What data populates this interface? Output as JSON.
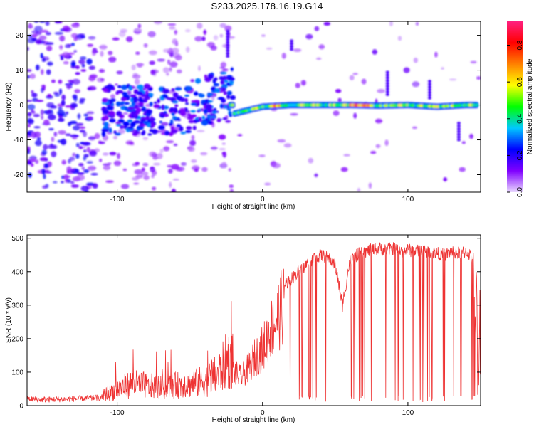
{
  "title": "S233.2025.178.16.19.G14",
  "chart_data": [
    {
      "type": "heatmap",
      "xlabel": "Height of straight line (km)",
      "ylabel": "Frequency (Hz)",
      "xlim": [
        -162,
        150
      ],
      "ylim": [
        -25,
        24
      ],
      "xticks": [
        -100,
        0,
        100
      ],
      "yticks": [
        -20,
        -10,
        0,
        10,
        20
      ],
      "colorbar": {
        "label": "Normalized spectral amplitude",
        "range": [
          0,
          0.93
        ],
        "ticks": [
          0.0,
          0.2,
          0.4,
          0.6,
          0.8
        ],
        "colormap": [
          "#e9d8ff",
          "#8000ff",
          "#0000ff",
          "#00c8ff",
          "#00ff00",
          "#ffff00",
          "#ff8000",
          "#ff0000",
          "#ff2080"
        ]
      },
      "ridge": {
        "description_units": "frequency (Hz) vs height (km)",
        "points": [
          [
            -20,
            -2.5
          ],
          [
            0,
            -0.5
          ],
          [
            20,
            0
          ],
          [
            40,
            0
          ],
          [
            60,
            0
          ],
          [
            80,
            -0.2
          ],
          [
            100,
            0
          ],
          [
            120,
            -0.5
          ],
          [
            140,
            0
          ]
        ]
      },
      "grid": false
    },
    {
      "type": "line",
      "xlabel": "Height of straight line (km)",
      "ylabel": "SNR (10 * v/v)",
      "xlim": [
        -162,
        150
      ],
      "ylim": [
        0,
        510
      ],
      "xticks": [
        -100,
        0,
        100
      ],
      "yticks": [
        0,
        100,
        200,
        300,
        400,
        500
      ],
      "series": [
        {
          "color": "#ee3333",
          "x": [
            -162,
            -150,
            -140,
            -130,
            -120,
            -110,
            -100,
            -90,
            -80,
            -70,
            -60,
            -50,
            -40,
            -30,
            -25,
            -20,
            -15,
            -10,
            -5,
            0,
            5,
            10,
            15,
            20,
            25,
            30,
            35,
            40,
            45,
            50,
            55,
            60,
            65,
            70,
            75,
            80,
            85,
            90,
            95,
            100,
            105,
            110,
            115,
            120,
            125,
            130,
            135,
            140,
            145,
            148,
            150
          ],
          "y": [
            20,
            18,
            19,
            20,
            22,
            25,
            40,
            55,
            50,
            45,
            50,
            55,
            60,
            80,
            110,
            120,
            100,
            130,
            170,
            200,
            260,
            310,
            360,
            380,
            400,
            420,
            440,
            450,
            440,
            420,
            300,
            430,
            450,
            460,
            465,
            470,
            465,
            470,
            460,
            465,
            460,
            465,
            460,
            455,
            450,
            460,
            455,
            460,
            440,
            30,
            40
          ]
        }
      ],
      "grid": false
    }
  ]
}
